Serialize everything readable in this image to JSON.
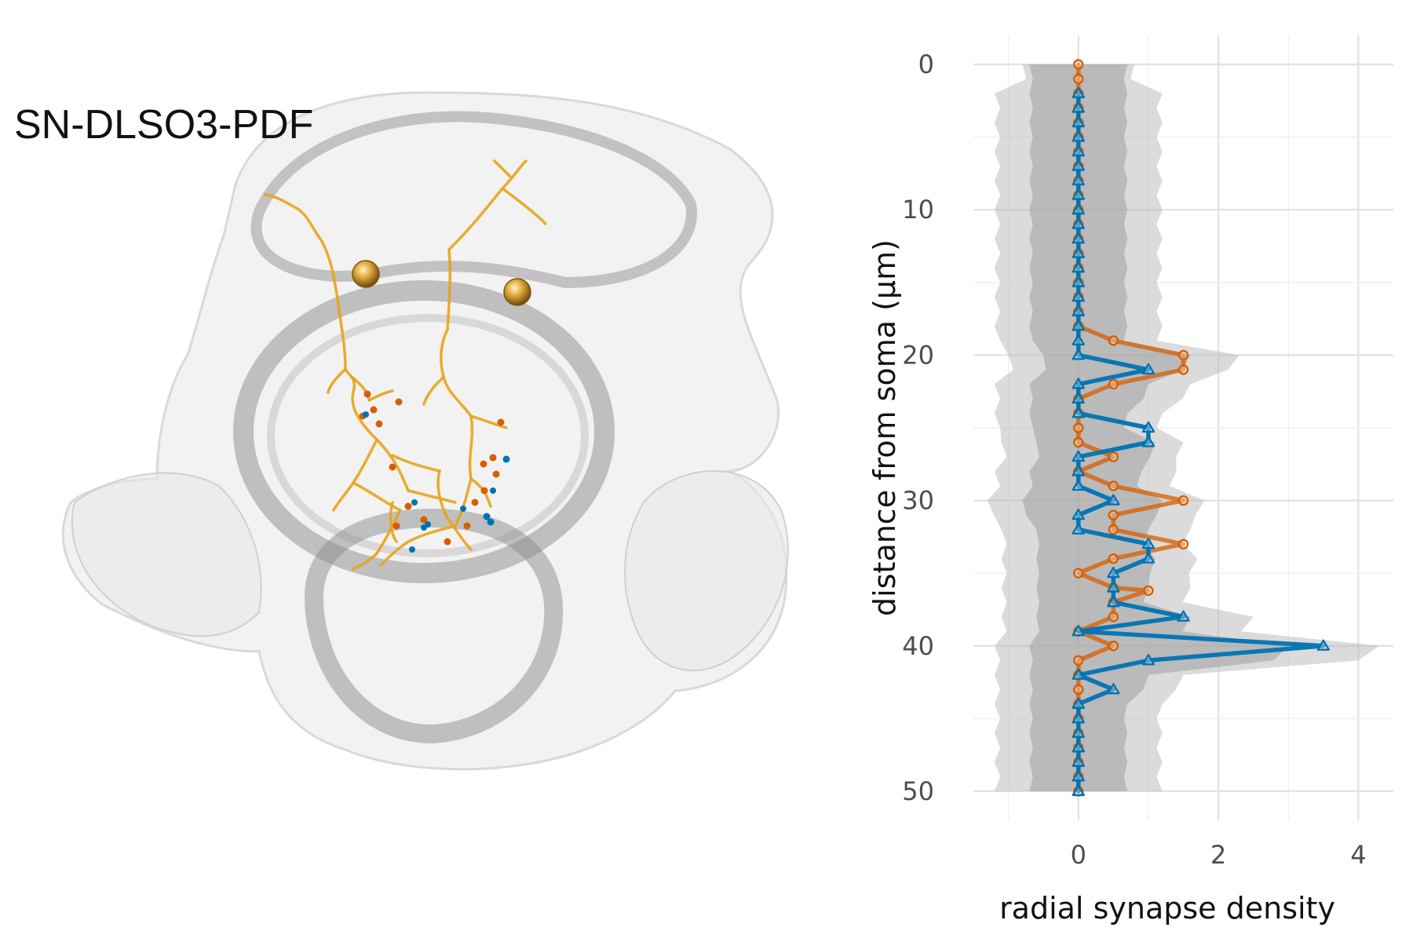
{
  "panel_left": {
    "neuron_label": "SN-DLSO3-PDF",
    "colors": {
      "mesh": "#bdbdbd",
      "neurite": "#e8a317",
      "soma": "#c8901e",
      "outgoing": "#d55e00",
      "incoming": "#0072b2"
    }
  },
  "chart_data": {
    "type": "line",
    "xlabel": "radial synapse density",
    "ylabel": "distance from soma (µm)",
    "xlim": [
      -1.5,
      4.5
    ],
    "ylim": [
      52,
      -2
    ],
    "y_reversed": true,
    "x_ticks": [
      0,
      2,
      4
    ],
    "y_ticks": [
      0,
      10,
      20,
      30,
      40,
      50
    ],
    "grid": true,
    "legend": "none",
    "series": [
      {
        "color": "#d55e00",
        "marker": "circle",
        "points": [
          [
            0,
            0
          ],
          [
            0,
            1
          ],
          [
            0,
            2
          ],
          [
            0,
            3
          ],
          [
            0,
            4
          ],
          [
            0,
            5
          ],
          [
            0,
            6
          ],
          [
            0,
            7
          ],
          [
            0,
            8
          ],
          [
            0,
            9
          ],
          [
            0,
            10
          ],
          [
            0,
            11
          ],
          [
            0,
            12
          ],
          [
            0,
            13
          ],
          [
            0,
            14
          ],
          [
            0,
            15
          ],
          [
            0,
            16
          ],
          [
            0,
            17
          ],
          [
            0,
            18
          ],
          [
            0.5,
            19
          ],
          [
            1.5,
            20
          ],
          [
            1.5,
            21
          ],
          [
            0.5,
            22
          ],
          [
            0,
            23
          ],
          [
            0,
            24
          ],
          [
            0,
            25
          ],
          [
            0,
            26
          ],
          [
            0.5,
            27
          ],
          [
            0,
            28
          ],
          [
            0.5,
            29
          ],
          [
            1.5,
            30
          ],
          [
            0.5,
            31
          ],
          [
            0.5,
            32
          ],
          [
            1.5,
            33
          ],
          [
            0.5,
            34
          ],
          [
            0,
            35
          ],
          [
            0.5,
            36
          ],
          [
            1,
            36.2
          ],
          [
            0.5,
            37
          ],
          [
            0.5,
            38
          ],
          [
            0,
            39
          ],
          [
            0.5,
            40
          ],
          [
            0,
            41
          ],
          [
            0,
            42
          ],
          [
            0,
            43
          ],
          [
            0,
            44
          ],
          [
            0,
            45
          ],
          [
            0,
            46
          ],
          [
            0,
            47
          ],
          [
            0,
            48
          ],
          [
            0,
            49
          ],
          [
            0,
            50
          ]
        ]
      },
      {
        "color": "#0072b2",
        "marker": "triangle",
        "points": [
          [
            0,
            2
          ],
          [
            0,
            3
          ],
          [
            0,
            4
          ],
          [
            0,
            5
          ],
          [
            0,
            6
          ],
          [
            0,
            7
          ],
          [
            0,
            8
          ],
          [
            0,
            9
          ],
          [
            0,
            10
          ],
          [
            0,
            11
          ],
          [
            0,
            12
          ],
          [
            0,
            13
          ],
          [
            0,
            14
          ],
          [
            0,
            15
          ],
          [
            0,
            16
          ],
          [
            0,
            17
          ],
          [
            0,
            18
          ],
          [
            0,
            19
          ],
          [
            0,
            20
          ],
          [
            1,
            21
          ],
          [
            0,
            22
          ],
          [
            0,
            23
          ],
          [
            0,
            24
          ],
          [
            1,
            25
          ],
          [
            1,
            26
          ],
          [
            0,
            27
          ],
          [
            0,
            28
          ],
          [
            0,
            29
          ],
          [
            0.5,
            30
          ],
          [
            0,
            31
          ],
          [
            0,
            32
          ],
          [
            1,
            33
          ],
          [
            1,
            34
          ],
          [
            0.5,
            35
          ],
          [
            0.5,
            36
          ],
          [
            0.5,
            37
          ],
          [
            1.5,
            38
          ],
          [
            0,
            39
          ],
          [
            3.5,
            40
          ],
          [
            1,
            41
          ],
          [
            0,
            42
          ],
          [
            0.5,
            43
          ],
          [
            0,
            44
          ],
          [
            0,
            45
          ],
          [
            0,
            46
          ],
          [
            0,
            47
          ],
          [
            0,
            48
          ],
          [
            0,
            49
          ],
          [
            0,
            50
          ]
        ]
      }
    ],
    "shuffled_bands": {
      "color": "#bdbdbd",
      "outer": [
        [
          0,
          -0.8,
          0.8
        ],
        [
          2,
          -1.2,
          1.2
        ],
        [
          4,
          -1.2,
          1.2
        ],
        [
          6,
          -1.2,
          1.2
        ],
        [
          8,
          -1.2,
          1.2
        ],
        [
          10,
          -1.2,
          1.2
        ],
        [
          12,
          -1.2,
          1.2
        ],
        [
          14,
          -1.2,
          1.2
        ],
        [
          16,
          -1.2,
          1.2
        ],
        [
          18,
          -1.2,
          1.2
        ],
        [
          20,
          -1.0,
          2.3
        ],
        [
          22,
          -1.2,
          1.6
        ],
        [
          24,
          -1.2,
          1.2
        ],
        [
          26,
          -1.1,
          1.5
        ],
        [
          28,
          -1.2,
          1.4
        ],
        [
          30,
          -1.3,
          1.8
        ],
        [
          32,
          -1.1,
          1.6
        ],
        [
          34,
          -1.1,
          1.7
        ],
        [
          36,
          -1.1,
          1.6
        ],
        [
          38,
          -1.1,
          2.5
        ],
        [
          40,
          -1.2,
          4.3
        ],
        [
          42,
          -1.2,
          1.5
        ],
        [
          44,
          -1.2,
          1.2
        ],
        [
          46,
          -1.2,
          1.2
        ],
        [
          48,
          -1.2,
          1.2
        ],
        [
          50,
          -1.2,
          1.2
        ]
      ],
      "inner": [
        [
          0,
          -0.7,
          0.7
        ],
        [
          2,
          -0.7,
          0.7
        ],
        [
          4,
          -0.7,
          0.7
        ],
        [
          6,
          -0.7,
          0.7
        ],
        [
          8,
          -0.7,
          0.7
        ],
        [
          10,
          -0.7,
          0.7
        ],
        [
          12,
          -0.7,
          0.7
        ],
        [
          14,
          -0.7,
          0.7
        ],
        [
          16,
          -0.7,
          0.7
        ],
        [
          18,
          -0.7,
          0.7
        ],
        [
          20,
          -0.5,
          1.6
        ],
        [
          22,
          -0.7,
          1.0
        ],
        [
          24,
          -0.7,
          0.7
        ],
        [
          26,
          -0.6,
          1.1
        ],
        [
          28,
          -0.7,
          0.9
        ],
        [
          30,
          -0.8,
          1.2
        ],
        [
          32,
          -0.6,
          1.0
        ],
        [
          34,
          -0.6,
          1.1
        ],
        [
          36,
          -0.6,
          1.0
        ],
        [
          38,
          -0.6,
          1.6
        ],
        [
          40,
          -0.7,
          3.0
        ],
        [
          42,
          -0.7,
          1.0
        ],
        [
          44,
          -0.7,
          0.7
        ],
        [
          46,
          -0.7,
          0.7
        ],
        [
          48,
          -0.7,
          0.7
        ],
        [
          50,
          -0.7,
          0.7
        ]
      ]
    }
  }
}
